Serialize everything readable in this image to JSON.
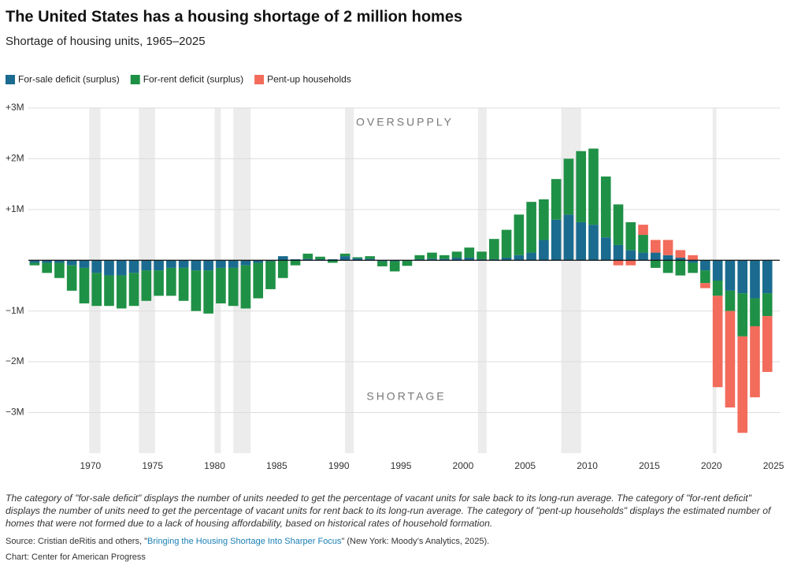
{
  "chart_data": {
    "type": "diverging-stacked-bar",
    "title": "The United States has a housing shortage of 2 million homes",
    "subtitle": "Shortage of housing units, 1965–2025",
    "annotations": [
      "OVERSUPPLY",
      "SHORTAGE"
    ],
    "x": [
      1965,
      1966,
      1967,
      1968,
      1969,
      1970,
      1971,
      1972,
      1973,
      1974,
      1975,
      1976,
      1977,
      1978,
      1979,
      1980,
      1981,
      1982,
      1983,
      1984,
      1985,
      1986,
      1987,
      1988,
      1989,
      1990,
      1991,
      1992,
      1993,
      1994,
      1995,
      1996,
      1997,
      1998,
      1999,
      2000,
      2001,
      2002,
      2003,
      2004,
      2005,
      2006,
      2007,
      2008,
      2009,
      2010,
      2011,
      2012,
      2013,
      2014,
      2015,
      2016,
      2017,
      2018,
      2019,
      2020,
      2021,
      2022,
      2023,
      2024
    ],
    "series": [
      {
        "name": "For-sale deficit (surplus)",
        "color": "#1a6b8f",
        "values": [
          -0.05,
          -0.05,
          -0.05,
          -0.1,
          -0.15,
          -0.25,
          -0.3,
          -0.3,
          -0.25,
          -0.2,
          -0.2,
          -0.15,
          -0.15,
          -0.2,
          -0.2,
          -0.15,
          -0.15,
          -0.1,
          -0.05,
          -0.02,
          0.08,
          0.02,
          0.03,
          0.02,
          0.02,
          0.08,
          0.04,
          0.03,
          -0.02,
          -0.02,
          -0.01,
          0.02,
          0.03,
          0.03,
          0.05,
          0.05,
          0.02,
          0.02,
          0.05,
          0.1,
          0.15,
          0.4,
          0.8,
          0.9,
          0.75,
          0.7,
          0.45,
          0.3,
          0.2,
          0.15,
          0.15,
          0.1,
          0.05,
          -0.05,
          -0.2,
          -0.4,
          -0.6,
          -0.65,
          -0.75,
          -0.65
        ]
      },
      {
        "name": "For-rent deficit (surplus)",
        "color": "#1f9146",
        "values": [
          -0.05,
          -0.2,
          -0.3,
          -0.5,
          -0.7,
          -0.65,
          -0.6,
          -0.65,
          -0.65,
          -0.6,
          -0.5,
          -0.55,
          -0.65,
          -0.8,
          -0.85,
          -0.7,
          -0.75,
          -0.85,
          -0.7,
          -0.55,
          -0.35,
          -0.1,
          0.1,
          0.05,
          -0.05,
          0.05,
          0.02,
          0.05,
          -0.1,
          -0.2,
          -0.1,
          0.08,
          0.12,
          0.07,
          0.12,
          0.2,
          0.15,
          0.4,
          0.55,
          0.8,
          1.0,
          0.8,
          0.8,
          1.1,
          1.4,
          1.5,
          1.2,
          0.8,
          0.55,
          0.35,
          -0.15,
          -0.25,
          -0.3,
          -0.2,
          -0.25,
          -0.3,
          -0.4,
          -0.85,
          -0.55,
          -0.45
        ]
      },
      {
        "name": "Pent-up households",
        "color": "#f26b5b",
        "values": [
          0,
          0,
          0,
          0,
          0,
          0,
          0,
          0,
          0,
          0,
          0,
          0,
          0,
          0,
          0,
          0,
          0,
          0,
          0,
          0,
          0,
          0,
          0,
          0,
          0,
          0,
          0,
          0,
          0,
          0,
          0,
          0,
          0,
          0,
          0,
          0,
          0,
          0,
          0,
          0,
          0,
          0,
          0,
          0,
          0,
          0,
          0,
          -0.1,
          -0.1,
          0.2,
          0.25,
          0.3,
          0.15,
          0.1,
          -0.1,
          -1.8,
          -1.9,
          -1.9,
          -1.4,
          -1.1
        ]
      }
    ],
    "shaded_periods": [
      [
        1969.9,
        1970.8
      ],
      [
        1973.9,
        1975.2
      ],
      [
        1980.0,
        1980.5
      ],
      [
        1981.5,
        1982.9
      ],
      [
        1990.5,
        1991.2
      ],
      [
        2001.2,
        2001.9
      ],
      [
        2007.9,
        2009.5
      ],
      [
        2020.1,
        2020.4
      ]
    ],
    "xlim": [
      1965,
      2025.5
    ],
    "xticks": [
      1970,
      1975,
      1980,
      1985,
      1990,
      1995,
      2000,
      2005,
      2010,
      2015,
      2020,
      2025
    ],
    "ylim": [
      -3.8,
      3
    ],
    "yticks": [
      {
        "value": 3,
        "label": "+3M"
      },
      {
        "value": 2,
        "label": "+2M"
      },
      {
        "value": 1,
        "label": "+1M"
      },
      {
        "value": 0,
        "label": ""
      },
      {
        "value": -1,
        "label": "−1M"
      },
      {
        "value": -2,
        "label": "−2M"
      },
      {
        "value": -3,
        "label": "−3M"
      }
    ],
    "grid": true,
    "note": "The category of \"for-sale deficit\" displays the number of units needed to get the percentage of vacant units for sale back to its long-run average. The category of \"for-rent deficit\" displays the number of units need to get the percentage of vacant units for rent back to its long-run average. The category of \"pent-up households\" displays the estimated number of homes that were not formed due to a lack of housing affordability, based on historical rates of household formation.",
    "source": [
      "Source: Cristian deRitis and others, \"",
      "Bringing the Housing Shortage Into Sharper Focus",
      "\" (New York: Moody’s Analytics, 2025)."
    ],
    "credit": "Chart: Center for American Progress"
  }
}
